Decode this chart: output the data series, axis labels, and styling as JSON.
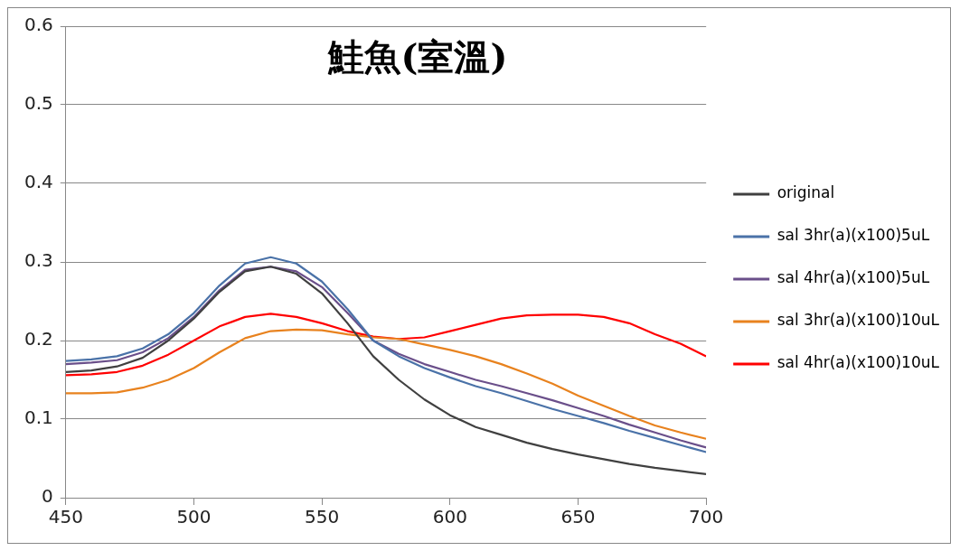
{
  "chart_data": {
    "type": "line",
    "title": "鮭魚(室溫)",
    "x": [
      450,
      460,
      470,
      480,
      490,
      500,
      510,
      520,
      530,
      540,
      550,
      560,
      570,
      580,
      590,
      600,
      610,
      620,
      630,
      640,
      650,
      660,
      670,
      680,
      690,
      700
    ],
    "series": [
      {
        "name": "original",
        "color": "#404040",
        "values": [
          0.16,
          0.162,
          0.167,
          0.178,
          0.2,
          0.228,
          0.262,
          0.288,
          0.294,
          0.285,
          0.26,
          0.222,
          0.18,
          0.15,
          0.125,
          0.105,
          0.09,
          0.08,
          0.07,
          0.062,
          0.055,
          0.049,
          0.043,
          0.038,
          0.034,
          0.03
        ]
      },
      {
        "name": "sal 3hr(a)(x100)5uL",
        "color": "#4a72a8",
        "values": [
          0.174,
          0.176,
          0.18,
          0.19,
          0.208,
          0.235,
          0.27,
          0.298,
          0.306,
          0.298,
          0.275,
          0.24,
          0.2,
          0.18,
          0.165,
          0.153,
          0.142,
          0.133,
          0.123,
          0.113,
          0.104,
          0.095,
          0.085,
          0.076,
          0.067,
          0.058
        ]
      },
      {
        "name": "sal 4hr(a)(x100)5uL",
        "color": "#6a4f8a",
        "values": [
          0.17,
          0.172,
          0.175,
          0.185,
          0.203,
          0.23,
          0.264,
          0.29,
          0.294,
          0.288,
          0.268,
          0.235,
          0.2,
          0.183,
          0.17,
          0.16,
          0.15,
          0.142,
          0.133,
          0.124,
          0.114,
          0.104,
          0.093,
          0.083,
          0.073,
          0.064
        ]
      },
      {
        "name": "sal 3hr(a)(x100)10uL",
        "color": "#e8821e",
        "values": [
          0.133,
          0.133,
          0.134,
          0.14,
          0.15,
          0.165,
          0.185,
          0.203,
          0.212,
          0.214,
          0.213,
          0.208,
          0.204,
          0.202,
          0.195,
          0.188,
          0.18,
          0.17,
          0.158,
          0.145,
          0.13,
          0.117,
          0.104,
          0.092,
          0.083,
          0.075
        ]
      },
      {
        "name": "sal 4hr(a)(x100)10uL",
        "color": "#ff0000",
        "values": [
          0.156,
          0.157,
          0.16,
          0.168,
          0.182,
          0.2,
          0.218,
          0.23,
          0.234,
          0.23,
          0.222,
          0.212,
          0.205,
          0.202,
          0.204,
          0.212,
          0.22,
          0.228,
          0.232,
          0.233,
          0.233,
          0.23,
          0.222,
          0.208,
          0.196,
          0.18
        ]
      }
    ],
    "xlim": [
      450,
      700
    ],
    "xticks": [
      450,
      500,
      550,
      600,
      650,
      700
    ],
    "ylim": [
      0,
      0.6
    ],
    "yticks": [
      0,
      0.1,
      0.2,
      0.3,
      0.4,
      0.5,
      0.6
    ],
    "grid": "y",
    "legend": "right",
    "marker": "none",
    "line_style": "solid"
  }
}
